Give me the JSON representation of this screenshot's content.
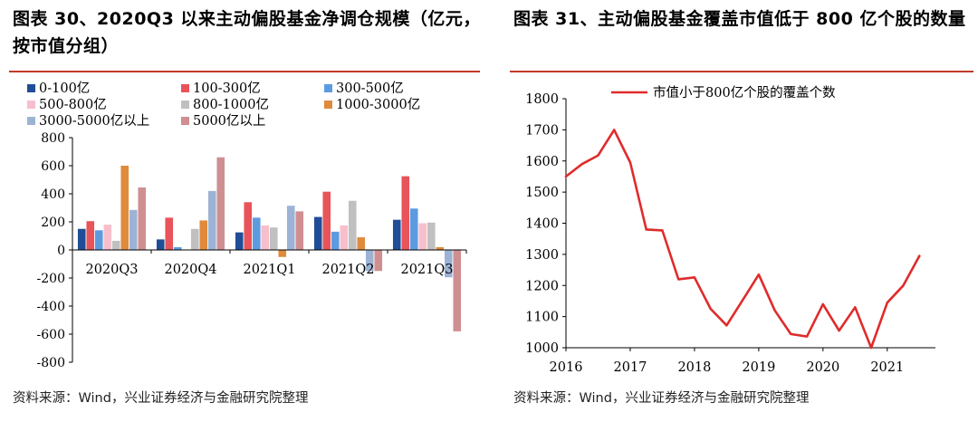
{
  "charts": [
    {
      "id": "left",
      "title": "图表 30、2020Q3 以来主动偏股基金净调仓规模（亿元，按市值分组）",
      "source": "资料来源：Wind，兴业证券经济与金融研究院整理"
    },
    {
      "id": "right",
      "title": "图表 31、主动偏股基金覆盖市值低于 800 亿个股的数量",
      "source": "资料来源：Wind，兴业证券经济与金融研究院整理"
    }
  ],
  "chart_data": [
    {
      "type": "bar",
      "title": "图表 30、2020Q3 以来主动偏股基金净调仓规模（亿元，按市值分组）",
      "ylabel": "",
      "xlabel": "",
      "ylim": [
        -800,
        800
      ],
      "yticks": [
        800,
        600,
        400,
        200,
        0,
        -200,
        -400,
        -600,
        -800
      ],
      "categories": [
        "2020Q3",
        "2020Q4",
        "2021Q1",
        "2021Q2",
        "2021Q3"
      ],
      "legend_position": "top",
      "grid": false,
      "series": [
        {
          "name": "0-100亿",
          "color": "#1f4e96",
          "values": [
            150,
            75,
            125,
            235,
            215
          ]
        },
        {
          "name": "100-300亿",
          "color": "#e8545a",
          "values": [
            205,
            230,
            340,
            415,
            525
          ]
        },
        {
          "name": "300-500亿",
          "color": "#5d9be0",
          "values": [
            140,
            20,
            230,
            130,
            295
          ]
        },
        {
          "name": "500-800亿",
          "color": "#f7bfcc",
          "values": [
            180,
            0,
            175,
            175,
            190
          ]
        },
        {
          "name": "800-1000亿",
          "color": "#c0c0c0",
          "values": [
            65,
            150,
            160,
            350,
            195
          ]
        },
        {
          "name": "1000-3000亿",
          "color": "#e08a3c",
          "values": [
            600,
            210,
            -50,
            90,
            20
          ]
        },
        {
          "name": "3000-5000亿以上",
          "color": "#9db3d6",
          "values": [
            285,
            420,
            315,
            -150,
            -195
          ]
        },
        {
          "name": "5000亿以上",
          "color": "#cf8f91",
          "values": [
            445,
            660,
            275,
            -150,
            -580
          ]
        }
      ]
    },
    {
      "type": "line",
      "title": "图表 31、主动偏股基金覆盖市值低于 800 亿个股的数量",
      "ylabel": "",
      "xlabel": "",
      "ylim": [
        1000,
        1800
      ],
      "xlim": [
        2016,
        2021.75
      ],
      "yticks": [
        1800,
        1700,
        1600,
        1500,
        1400,
        1300,
        1200,
        1100,
        1000
      ],
      "xticks": [
        "2016",
        "2017",
        "2018",
        "2019",
        "2020",
        "2021"
      ],
      "legend_position": "top-left",
      "grid": false,
      "series": [
        {
          "name": "市值小于800亿个股的覆盖个数",
          "color": "#e02b2b",
          "x": [
            2016.0,
            2016.25,
            2016.5,
            2016.75,
            2017.0,
            2017.25,
            2017.5,
            2017.75,
            2018.0,
            2018.25,
            2018.5,
            2018.75,
            2019.0,
            2019.25,
            2019.5,
            2019.75,
            2020.0,
            2020.25,
            2020.5,
            2020.75,
            2021.0,
            2021.25,
            2021.5
          ],
          "y": [
            1550,
            1590,
            1618,
            1700,
            1595,
            1380,
            1377,
            1220,
            1226,
            1125,
            1072,
            1153,
            1235,
            1120,
            1044,
            1036,
            1140,
            1055,
            1130,
            1000,
            1145,
            1200,
            1295
          ]
        }
      ]
    }
  ]
}
